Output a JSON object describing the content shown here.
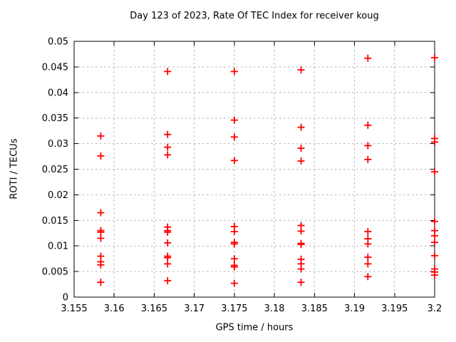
{
  "figure": {
    "background": "#ffffff",
    "frame_color": "#000000",
    "text_color": "#000000",
    "grid_color": "#b4b4b4"
  },
  "chart_data": {
    "type": "scatter",
    "title": "Day 123 of 2023, Rate Of TEC Index for receiver koug",
    "xlabel": "GPS time / hours",
    "ylabel": "ROTI / TECUs",
    "xlim": [
      3.155,
      3.2
    ],
    "ylim": [
      0,
      0.05
    ],
    "xticks": [
      3.155,
      3.16,
      3.165,
      3.17,
      3.175,
      3.18,
      3.185,
      3.19,
      3.195,
      3.2
    ],
    "xtick_labels": [
      "3.155",
      "3.16",
      "3.165",
      "3.17",
      "3.175",
      "3.18",
      "3.185",
      "3.19",
      "3.195",
      "3.2"
    ],
    "yticks": [
      0,
      0.005,
      0.01,
      0.015,
      0.02,
      0.025,
      0.03,
      0.035,
      0.04,
      0.045,
      0.05
    ],
    "ytick_labels": [
      "0",
      "0.005",
      "0.01",
      "0.015",
      "0.02",
      "0.025",
      "0.03",
      "0.035",
      "0.04",
      "0.045",
      "0.05"
    ],
    "grid": true,
    "legend_position": "none",
    "marker": "plus",
    "marker_color": "#ff0000",
    "series": [
      {
        "name": "ROTI",
        "points": [
          [
            3.15833,
            0.0315
          ],
          [
            3.15833,
            0.0276
          ],
          [
            3.15833,
            0.0165
          ],
          [
            3.15833,
            0.013
          ],
          [
            3.15833,
            0.0127
          ],
          [
            3.15833,
            0.0115
          ],
          [
            3.15833,
            0.008
          ],
          [
            3.15833,
            0.0069
          ],
          [
            3.15833,
            0.0063
          ],
          [
            3.15833,
            0.0029
          ],
          [
            3.16667,
            0.0441
          ],
          [
            3.16667,
            0.0318
          ],
          [
            3.16667,
            0.0293
          ],
          [
            3.16667,
            0.0278
          ],
          [
            3.16667,
            0.0137
          ],
          [
            3.16667,
            0.013
          ],
          [
            3.16667,
            0.0127
          ],
          [
            3.16667,
            0.0106
          ],
          [
            3.16667,
            0.008
          ],
          [
            3.16667,
            0.0077
          ],
          [
            3.16667,
            0.0065
          ],
          [
            3.16667,
            0.0032
          ],
          [
            3.175,
            0.0441
          ],
          [
            3.175,
            0.0346
          ],
          [
            3.175,
            0.0313
          ],
          [
            3.175,
            0.0267
          ],
          [
            3.175,
            0.0138
          ],
          [
            3.175,
            0.0128
          ],
          [
            3.175,
            0.0107
          ],
          [
            3.175,
            0.0104
          ],
          [
            3.175,
            0.0075
          ],
          [
            3.175,
            0.0062
          ],
          [
            3.175,
            0.0059
          ],
          [
            3.175,
            0.0027
          ],
          [
            3.18333,
            0.0444
          ],
          [
            3.18333,
            0.0332
          ],
          [
            3.18333,
            0.0291
          ],
          [
            3.18333,
            0.0266
          ],
          [
            3.18333,
            0.014
          ],
          [
            3.18333,
            0.0129
          ],
          [
            3.18333,
            0.0105
          ],
          [
            3.18333,
            0.0103
          ],
          [
            3.18333,
            0.0074
          ],
          [
            3.18333,
            0.0065
          ],
          [
            3.18333,
            0.0055
          ],
          [
            3.18333,
            0.0029
          ],
          [
            3.19167,
            0.0467
          ],
          [
            3.19167,
            0.0336
          ],
          [
            3.19167,
            0.0296
          ],
          [
            3.19167,
            0.0269
          ],
          [
            3.19167,
            0.0128
          ],
          [
            3.19167,
            0.0114
          ],
          [
            3.19167,
            0.0104
          ],
          [
            3.19167,
            0.0078
          ],
          [
            3.19167,
            0.0065
          ],
          [
            3.19167,
            0.004
          ],
          [
            3.2,
            0.0468
          ],
          [
            3.2,
            0.031
          ],
          [
            3.2,
            0.0303
          ],
          [
            3.2,
            0.0245
          ],
          [
            3.2,
            0.0148
          ],
          [
            3.2,
            0.013
          ],
          [
            3.2,
            0.012
          ],
          [
            3.2,
            0.0107
          ],
          [
            3.2,
            0.0081
          ],
          [
            3.2,
            0.0055
          ],
          [
            3.2,
            0.0049
          ],
          [
            3.2,
            0.0043
          ]
        ]
      }
    ]
  }
}
